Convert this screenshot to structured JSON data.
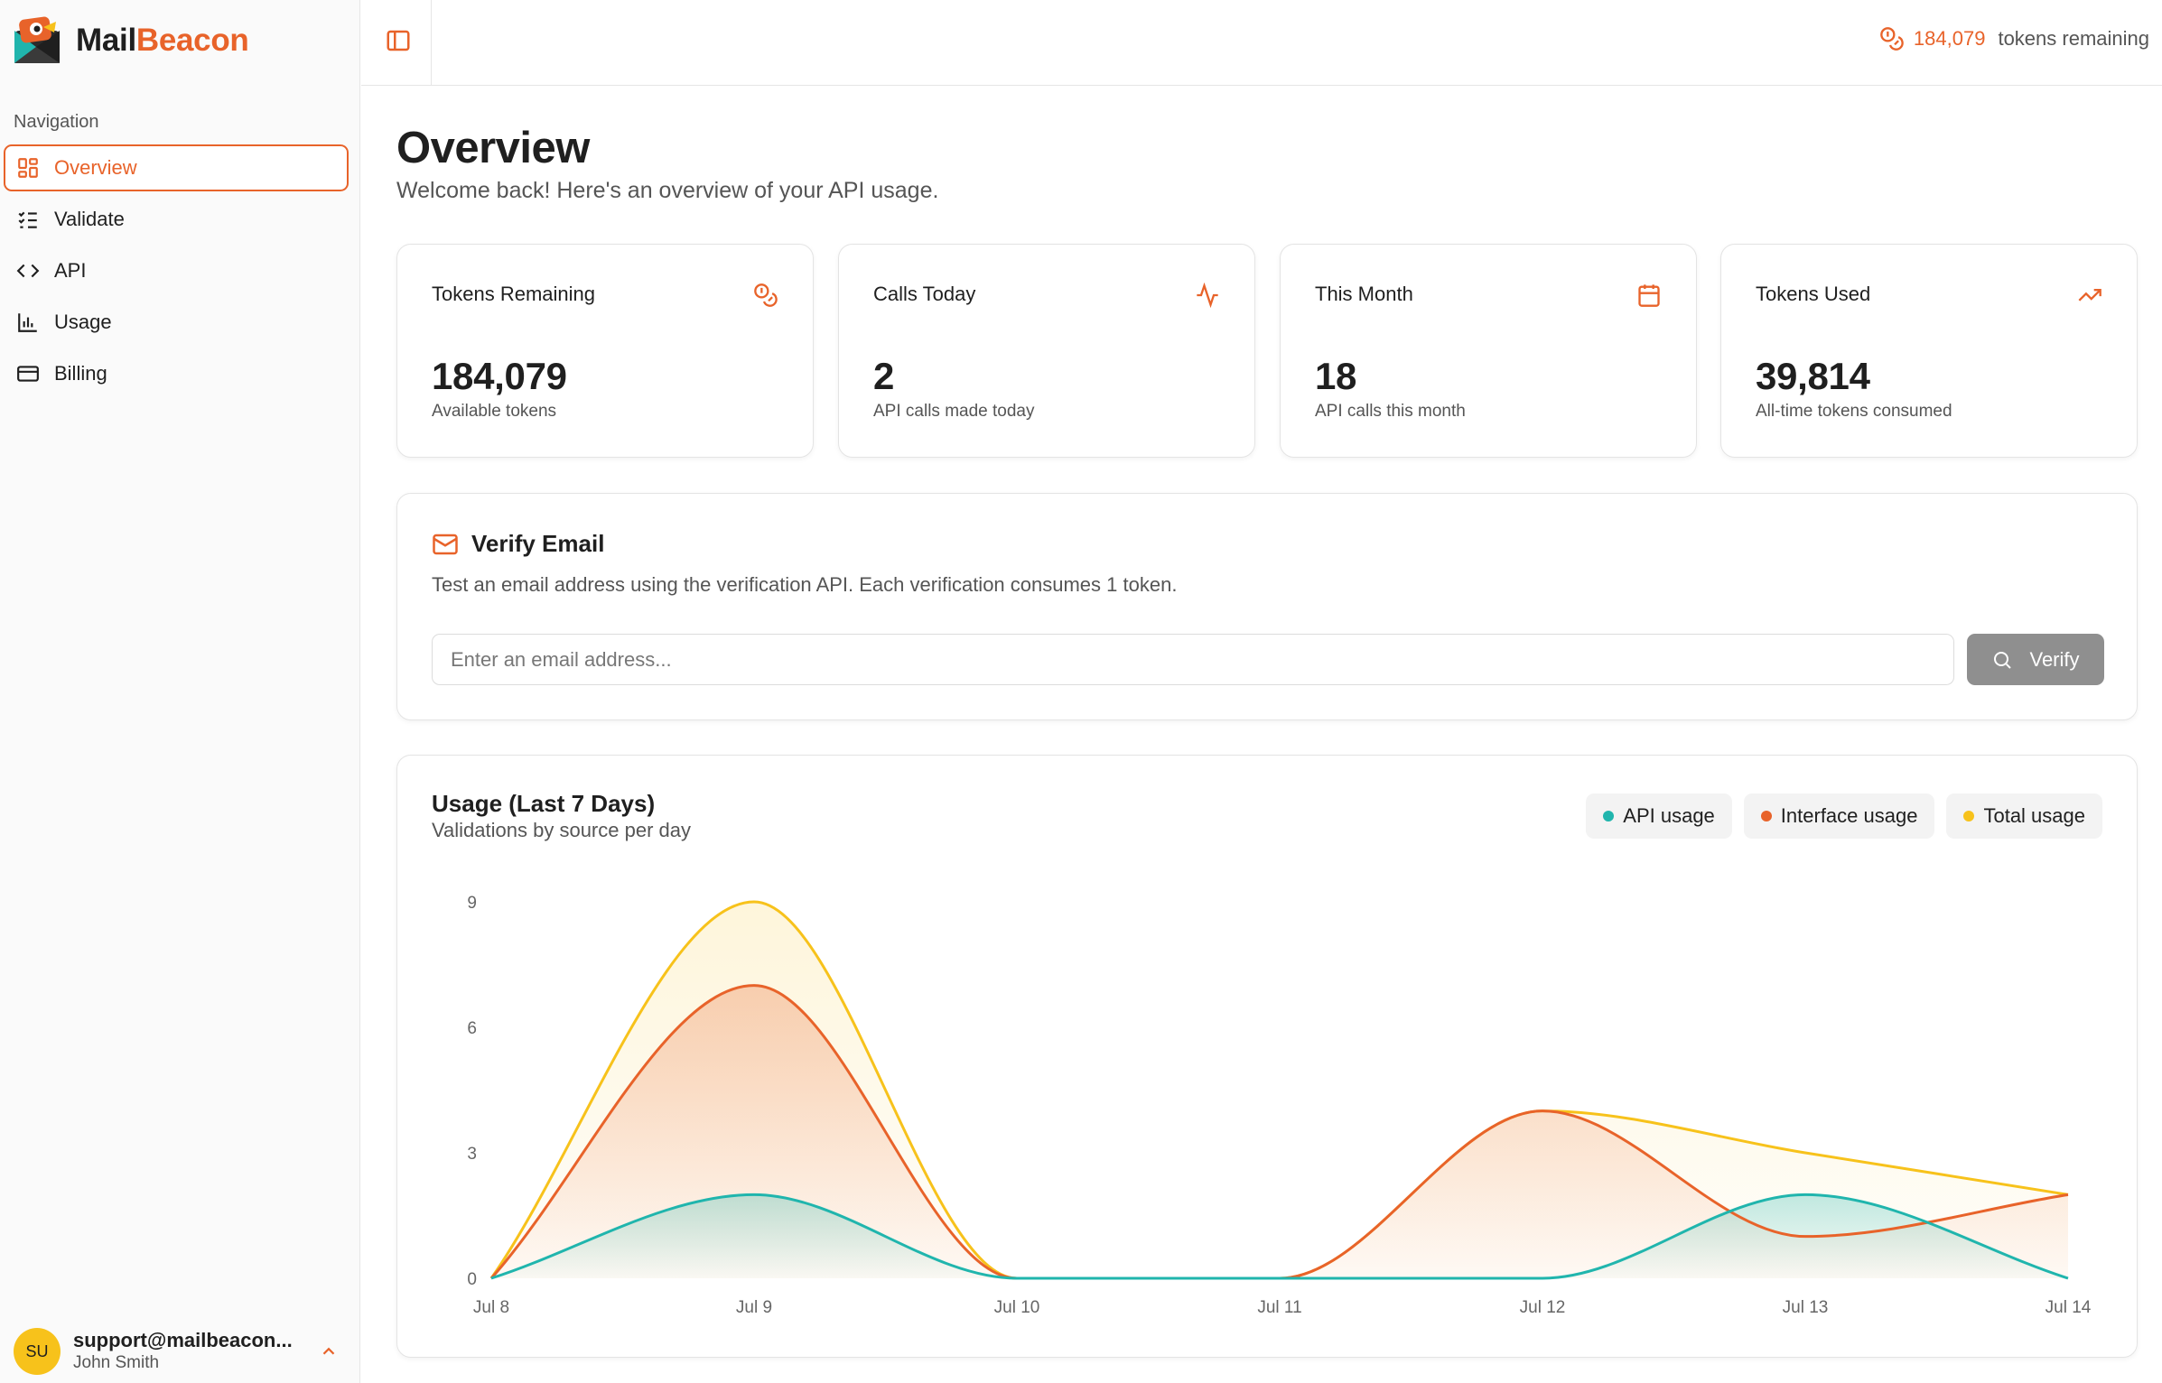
{
  "app": {
    "name_part1": "Mail",
    "name_part2": "Beacon"
  },
  "sidebar": {
    "heading": "Navigation",
    "items": [
      {
        "label": "Overview",
        "icon": "dashboard-icon",
        "active": true
      },
      {
        "label": "Validate",
        "icon": "list-checks-icon"
      },
      {
        "label": "API",
        "icon": "code-icon"
      },
      {
        "label": "Usage",
        "icon": "bar-chart-icon"
      },
      {
        "label": "Billing",
        "icon": "credit-card-icon"
      }
    ],
    "user": {
      "initials": "SU",
      "email": "support@mailbeacon...",
      "name": "John Smith"
    }
  },
  "topbar": {
    "tokens_value": "184,079",
    "tokens_label": "tokens remaining"
  },
  "page": {
    "title": "Overview",
    "subtitle": "Welcome back! Here's an overview of your API usage."
  },
  "stats": [
    {
      "title": "Tokens Remaining",
      "value": "184,079",
      "desc": "Available tokens",
      "icon": "coins-icon"
    },
    {
      "title": "Calls Today",
      "value": "2",
      "desc": "API calls made today",
      "icon": "activity-icon"
    },
    {
      "title": "This Month",
      "value": "18",
      "desc": "API calls this month",
      "icon": "calendar-icon"
    },
    {
      "title": "Tokens Used",
      "value": "39,814",
      "desc": "All-time tokens consumed",
      "icon": "trending-up-icon"
    }
  ],
  "verify": {
    "title": "Verify Email",
    "description": "Test an email address using the verification API. Each verification consumes 1 token.",
    "placeholder": "Enter an email address...",
    "value": "",
    "button_label": "Verify"
  },
  "colors": {
    "accent": "#e8632a",
    "api": "#20b5ad",
    "interface": "#e8632a",
    "total": "#f7c21b"
  },
  "chart_data": {
    "type": "area",
    "title": "Usage (Last 7 Days)",
    "subtitle": "Validations by source per day",
    "categories": [
      "Jul 8",
      "Jul 9",
      "Jul 10",
      "Jul 11",
      "Jul 12",
      "Jul 13",
      "Jul 14"
    ],
    "yticks": [
      "0",
      "3",
      "6",
      "9"
    ],
    "ylim": [
      0,
      9
    ],
    "legend_position": "top-right",
    "grid": false,
    "series": [
      {
        "name": "API usage",
        "values": [
          0,
          2,
          0,
          0,
          0,
          2,
          0
        ]
      },
      {
        "name": "Interface usage",
        "values": [
          0,
          7,
          0,
          0,
          4,
          1,
          2
        ]
      },
      {
        "name": "Total usage",
        "values": [
          0,
          9,
          0,
          0,
          4,
          3,
          2
        ]
      }
    ]
  }
}
